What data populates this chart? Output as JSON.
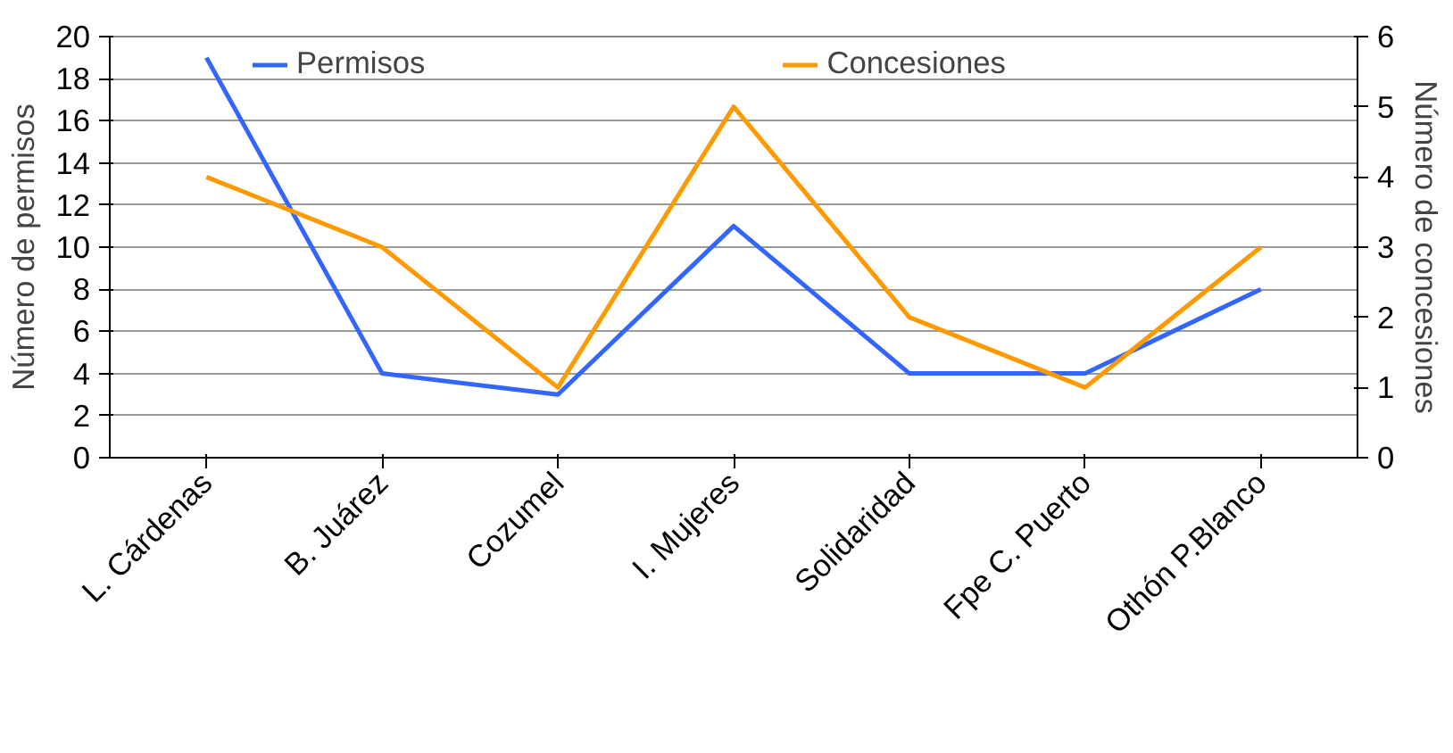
{
  "chart_data": {
    "type": "line",
    "ylabel": "Número de permisos",
    "y2label": "Número de concesiones",
    "categories": [
      "L. Cárdenas",
      "B. Juárez",
      "Cozumel",
      "I. Mujeres",
      "Solidaridad",
      "Fpe C. Puerto",
      "Othón P.Blanco"
    ],
    "series": [
      {
        "name": "Permisos",
        "color": "#3366ff",
        "values": [
          19,
          4,
          3,
          11,
          4,
          4,
          8
        ]
      },
      {
        "name": "Concesiones",
        "color": "#ff9900",
        "values": [
          4,
          3,
          1,
          5,
          2,
          1,
          3
        ],
        "axis": "y2"
      }
    ],
    "ylim": [
      0,
      20
    ],
    "yticks": [
      0,
      2,
      4,
      6,
      8,
      10,
      12,
      14,
      16,
      18,
      20
    ],
    "y2lim": [
      0,
      6
    ],
    "y2ticks": [
      0,
      1,
      2,
      3,
      4,
      5,
      6
    ],
    "grid": "y",
    "legend": "top",
    "marker": "none",
    "line_style": "solid"
  }
}
